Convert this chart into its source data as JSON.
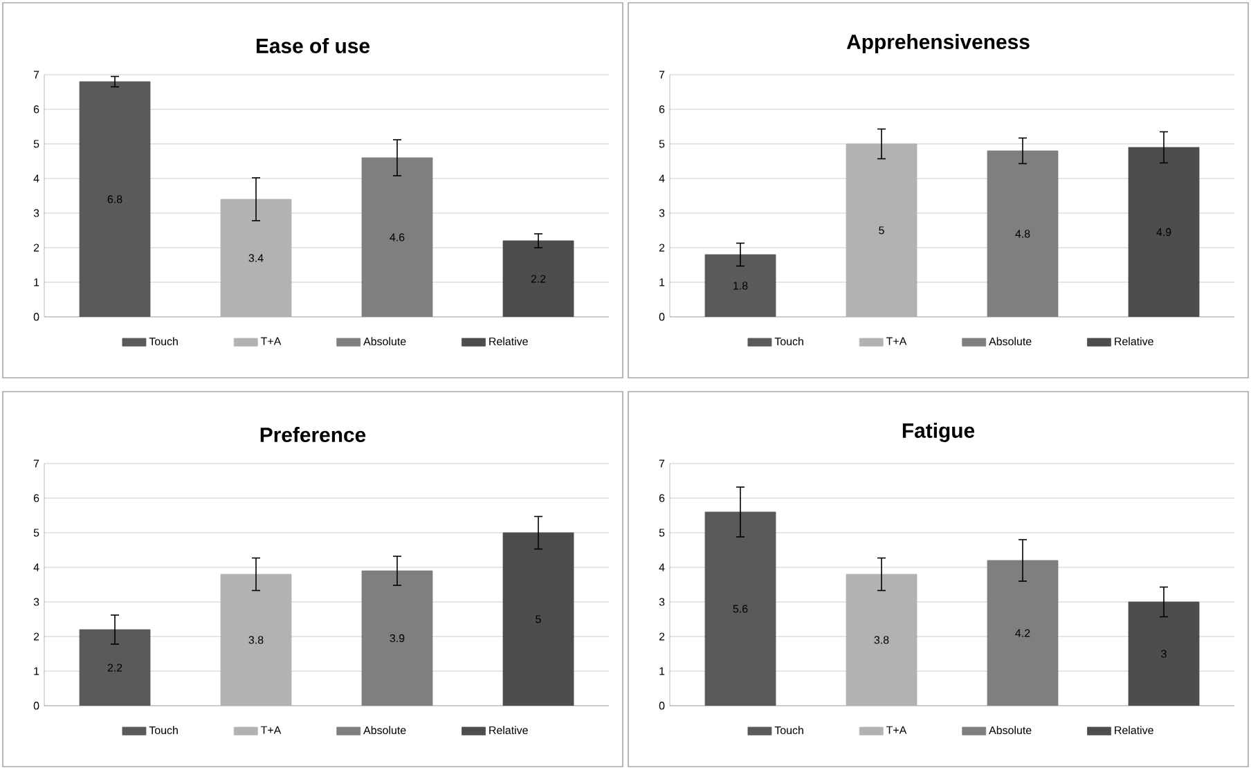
{
  "chart_data": [
    {
      "type": "bar",
      "title": "Ease of use",
      "categories": [
        null,
        null,
        null,
        null
      ],
      "ylim": [
        0,
        7
      ],
      "yticks": [
        0,
        1,
        2,
        3,
        4,
        5,
        6,
        7
      ],
      "grid": "y",
      "legend": "bottom",
      "data_labels": true,
      "series": [
        {
          "name": "Touch",
          "color": "#5a5a5a",
          "values": [
            6.8,
            null,
            null,
            null
          ],
          "errors": [
            0.15,
            null,
            null,
            null
          ]
        },
        {
          "name": "T+A",
          "color": "#b2b2b2",
          "values": [
            null,
            3.4,
            null,
            null
          ],
          "errors": [
            null,
            0.62,
            null,
            null
          ]
        },
        {
          "name": "Absolute",
          "color": "#7f7f7f",
          "values": [
            null,
            null,
            4.6,
            null
          ],
          "errors": [
            null,
            null,
            0.52,
            null
          ]
        },
        {
          "name": "Relative",
          "color": "#4d4d4d",
          "values": [
            null,
            null,
            null,
            2.2
          ],
          "errors": [
            null,
            null,
            null,
            0.2
          ]
        }
      ]
    },
    {
      "type": "bar",
      "title": "Apprehensiveness",
      "categories": [
        null,
        null,
        null,
        null
      ],
      "ylim": [
        0,
        7
      ],
      "yticks": [
        0,
        1,
        2,
        3,
        4,
        5,
        6,
        7
      ],
      "grid": "y",
      "legend": "bottom",
      "data_labels": true,
      "series": [
        {
          "name": "Touch",
          "color": "#5a5a5a",
          "values": [
            1.8,
            null,
            null,
            null
          ],
          "errors": [
            0.33,
            null,
            null,
            null
          ]
        },
        {
          "name": "T+A",
          "color": "#b2b2b2",
          "values": [
            null,
            5,
            null,
            null
          ],
          "errors": [
            null,
            0.43,
            null,
            null
          ]
        },
        {
          "name": "Absolute",
          "color": "#7f7f7f",
          "values": [
            null,
            null,
            4.8,
            null
          ],
          "errors": [
            null,
            null,
            0.37,
            null
          ]
        },
        {
          "name": "Relative",
          "color": "#4d4d4d",
          "values": [
            null,
            null,
            null,
            4.9
          ],
          "errors": [
            null,
            null,
            null,
            0.45
          ]
        }
      ]
    },
    {
      "type": "bar",
      "title": "Preference",
      "categories": [
        null,
        null,
        null,
        null
      ],
      "ylim": [
        0,
        7
      ],
      "yticks": [
        0,
        1,
        2,
        3,
        4,
        5,
        6,
        7
      ],
      "grid": "y",
      "legend": "bottom",
      "data_labels": true,
      "series": [
        {
          "name": "Touch",
          "color": "#5a5a5a",
          "values": [
            2.2,
            null,
            null,
            null
          ],
          "errors": [
            0.42,
            null,
            null,
            null
          ]
        },
        {
          "name": "T+A",
          "color": "#b2b2b2",
          "values": [
            null,
            3.8,
            null,
            null
          ],
          "errors": [
            null,
            0.47,
            null,
            null
          ]
        },
        {
          "name": "Absolute",
          "color": "#7f7f7f",
          "values": [
            null,
            null,
            3.9,
            null
          ],
          "errors": [
            null,
            null,
            0.42,
            null
          ]
        },
        {
          "name": "Relative",
          "color": "#4d4d4d",
          "values": [
            null,
            null,
            null,
            5
          ],
          "errors": [
            null,
            null,
            null,
            0.47
          ]
        }
      ]
    },
    {
      "type": "bar",
      "title": "Fatigue",
      "categories": [
        null,
        null,
        null,
        null
      ],
      "ylim": [
        0,
        7
      ],
      "yticks": [
        0,
        1,
        2,
        3,
        4,
        5,
        6,
        7
      ],
      "grid": "y",
      "legend": "bottom",
      "data_labels": true,
      "series": [
        {
          "name": "Touch",
          "color": "#5a5a5a",
          "values": [
            5.6,
            null,
            null,
            null
          ],
          "errors": [
            0.72,
            null,
            null,
            null
          ]
        },
        {
          "name": "T+A",
          "color": "#b2b2b2",
          "values": [
            null,
            3.8,
            null,
            null
          ],
          "errors": [
            null,
            0.47,
            null,
            null
          ]
        },
        {
          "name": "Absolute",
          "color": "#7f7f7f",
          "values": [
            null,
            null,
            4.2,
            null
          ],
          "errors": [
            null,
            null,
            0.6,
            null
          ]
        },
        {
          "name": "Relative",
          "color": "#4d4d4d",
          "values": [
            null,
            null,
            null,
            3
          ],
          "errors": [
            null,
            null,
            null,
            0.43
          ]
        }
      ]
    }
  ]
}
